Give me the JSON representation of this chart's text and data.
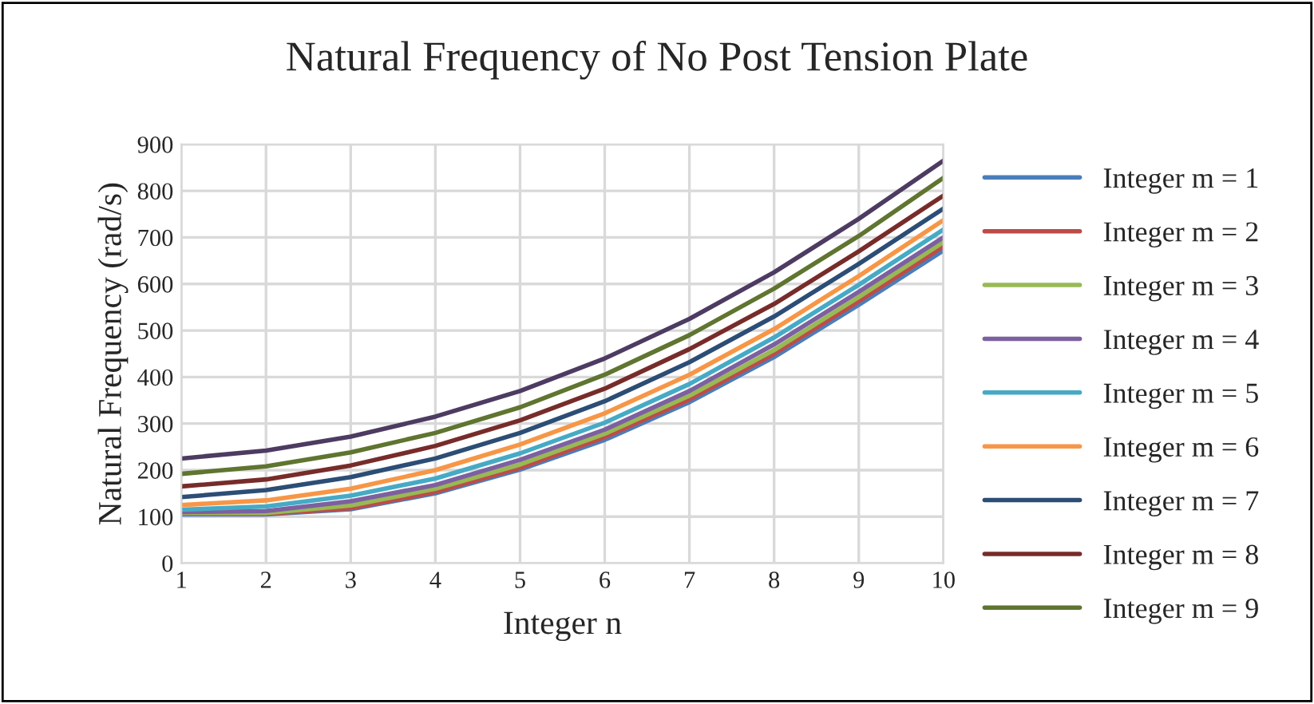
{
  "chart_data": {
    "type": "line",
    "title": "Natural Frequency of No Post Tension Plate",
    "xlabel": "Integer n",
    "ylabel": "Natural Frequency (rad/s)",
    "x": [
      1,
      2,
      3,
      4,
      5,
      6,
      7,
      8,
      9,
      10
    ],
    "xlim": [
      1,
      10
    ],
    "xticks": [
      1,
      2,
      3,
      4,
      5,
      6,
      7,
      8,
      9,
      10
    ],
    "ylim": [
      0,
      900
    ],
    "yticks": [
      0,
      100,
      200,
      300,
      400,
      500,
      600,
      700,
      800,
      900
    ],
    "grid": true,
    "legend": "right",
    "marker": "none",
    "line_style": "solid",
    "series": [
      {
        "name": "Integer m = 1",
        "color": "#4a7ebb",
        "values": [
          105,
          105,
          116,
          150,
          201,
          265,
          346,
          443,
          555,
          672
        ]
      },
      {
        "name": "Integer m = 2",
        "color": "#be4b48",
        "values": [
          107,
          106,
          118,
          153,
          205,
          271,
          352,
          450,
          563,
          681
        ]
      },
      {
        "name": "Integer m = 3",
        "color": "#98b954",
        "values": [
          108,
          108,
          124,
          160,
          212,
          278,
          360,
          458,
          572,
          690
        ]
      },
      {
        "name": "Integer m = 4",
        "color": "#7d60a0",
        "values": [
          110,
          112,
          133,
          168,
          222,
          287,
          370,
          470,
          583,
          700
        ]
      },
      {
        "name": "Integer m = 5",
        "color": "#46aac5",
        "values": [
          115,
          122,
          145,
          182,
          236,
          302,
          385,
          485,
          598,
          717
        ]
      },
      {
        "name": "Integer m = 6",
        "color": "#f79646",
        "values": [
          125,
          135,
          160,
          200,
          255,
          322,
          405,
          503,
          617,
          737
        ]
      },
      {
        "name": "Integer m = 7",
        "color": "#2c4d75",
        "values": [
          142,
          157,
          185,
          225,
          280,
          348,
          432,
          530,
          643,
          762
        ]
      },
      {
        "name": "Integer m = 8",
        "color": "#772c2a",
        "values": [
          165,
          180,
          210,
          252,
          307,
          375,
          460,
          557,
          670,
          790
        ]
      },
      {
        "name": "Integer m = 9",
        "color": "#5f7530",
        "values": [
          192,
          208,
          238,
          280,
          335,
          405,
          490,
          590,
          703,
          828
        ]
      },
      {
        "color": "#4d3b62",
        "values": [
          225,
          242,
          272,
          315,
          370,
          440,
          525,
          625,
          740,
          865
        ]
      }
    ]
  }
}
